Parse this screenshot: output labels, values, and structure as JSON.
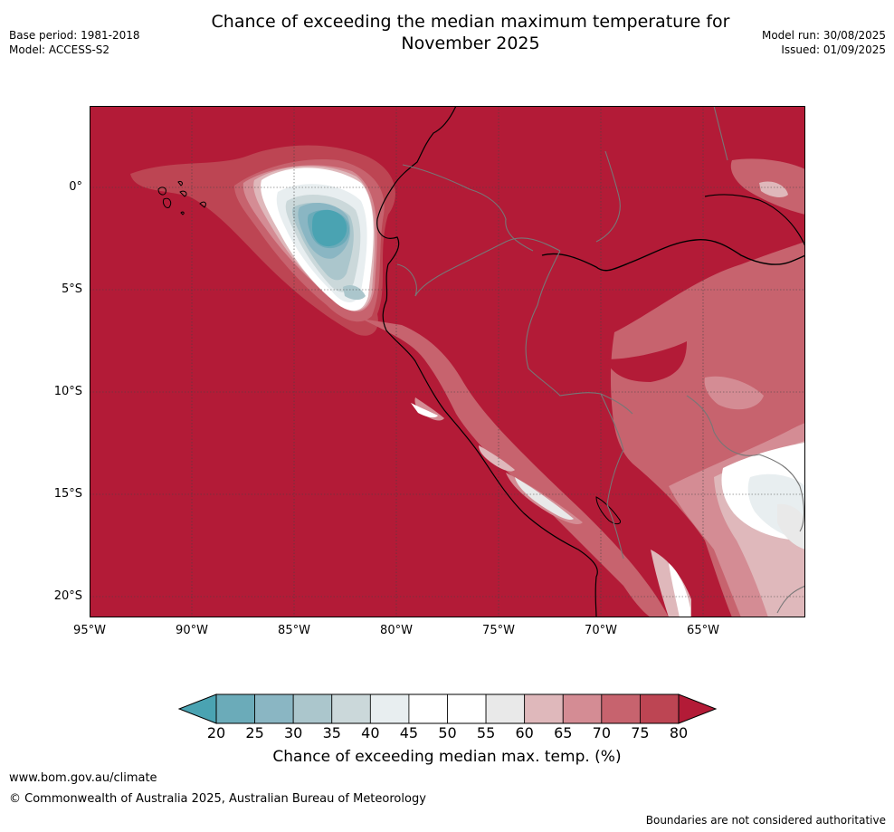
{
  "header": {
    "title_line1": "Chance of exceeding the median maximum temperature for",
    "title_line2": "November 2025",
    "base_period": "Base period: 1981-2018",
    "model": "Model: ACCESS-S2",
    "model_run": "Model run: 30/08/2025",
    "issued": "Issued: 01/09/2025"
  },
  "map": {
    "lat_labels": [
      "0°",
      "5°S",
      "10°S",
      "15°S",
      "20°S"
    ],
    "lat_values": [
      0,
      -5,
      -10,
      -15,
      -20
    ],
    "lon_labels": [
      "95°W",
      "90°W",
      "85°W",
      "80°W",
      "75°W",
      "70°W",
      "65°W"
    ],
    "lon_values": [
      -95,
      -90,
      -85,
      -80,
      -75,
      -70,
      -65
    ],
    "lat_range": [
      -21,
      4
    ],
    "lon_range": [
      -95,
      -60
    ],
    "grid": "dotted",
    "background_color": "#b31b37"
  },
  "colorbar": {
    "ticks": [
      "20",
      "25",
      "30",
      "35",
      "40",
      "45",
      "50",
      "55",
      "60",
      "65",
      "70",
      "75",
      "80"
    ],
    "colors": [
      "#6babb9",
      "#8ab6c3",
      "#abc6cc",
      "#cbd8da",
      "#e8eef0",
      "#ffffff",
      "#ffffff",
      "#e9e9e9",
      "#dfb8bb",
      "#d48c94",
      "#c7636e",
      "#bd4553"
    ],
    "low_extend_color": "#4aa3b2",
    "high_extend_color": "#b31b37",
    "label": "Chance of exceeding median max. temp. (%)"
  },
  "footer": {
    "url": "www.bom.gov.au/climate",
    "copyright": "© Commonwealth of Australia 2025, Australian Bureau of Meteorology",
    "disclaimer": "Boundaries are not considered authoritative"
  }
}
